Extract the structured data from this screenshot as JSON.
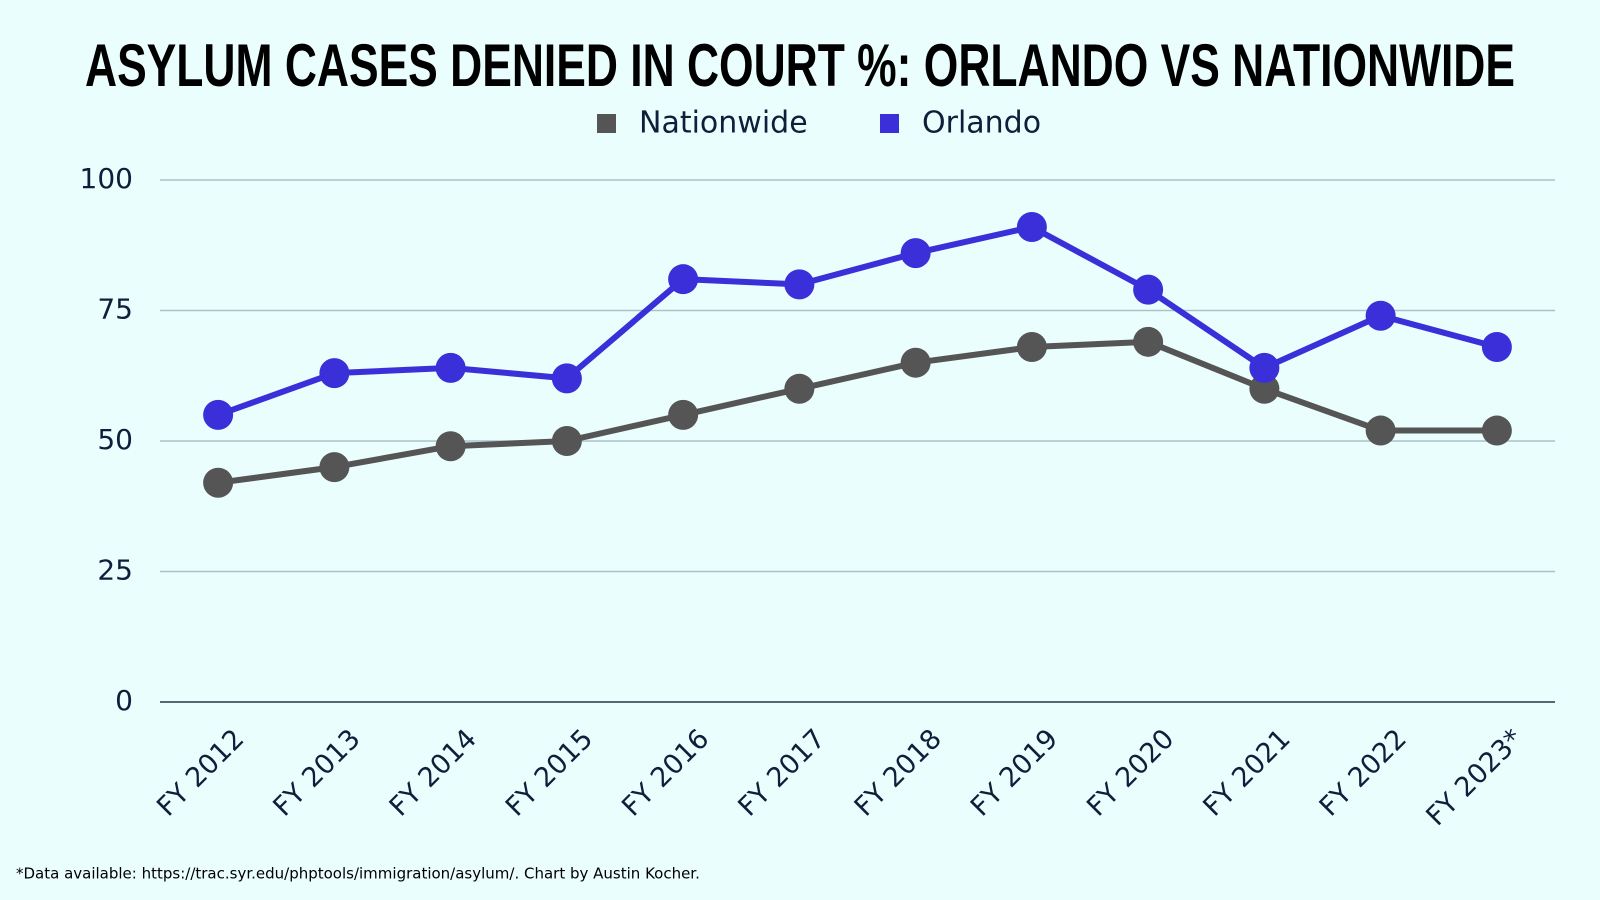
{
  "chart_data": {
    "type": "line",
    "title": "ASYLUM CASES DENIED IN COURT %: ORLANDO VS NATIONWIDE",
    "categories": [
      "FY 2012",
      "FY 2013",
      "FY 2014",
      "FY 2015",
      "FY 2016",
      "FY 2017",
      "FY 2018",
      "FY 2019",
      "FY 2020",
      "FY 2021",
      "FY 2022",
      "FY 2023*"
    ],
    "series": [
      {
        "name": "Nationwide",
        "color": "#555555",
        "values": [
          42,
          45,
          49,
          50,
          55,
          60,
          65,
          68,
          69,
          60,
          52,
          52
        ]
      },
      {
        "name": "Orlando",
        "color": "#3a2fd8",
        "values": [
          55,
          63,
          64,
          62,
          81,
          80,
          86,
          91,
          79,
          64,
          74,
          68
        ]
      }
    ],
    "ylim": [
      0,
      100
    ],
    "yticks": [
      0,
      25,
      50,
      75,
      100
    ],
    "grid": true,
    "legend": "top",
    "note": "*Data available: https://trac.syr.edu/phptools/immigration/asylum/. Chart by Austin Kocher."
  }
}
